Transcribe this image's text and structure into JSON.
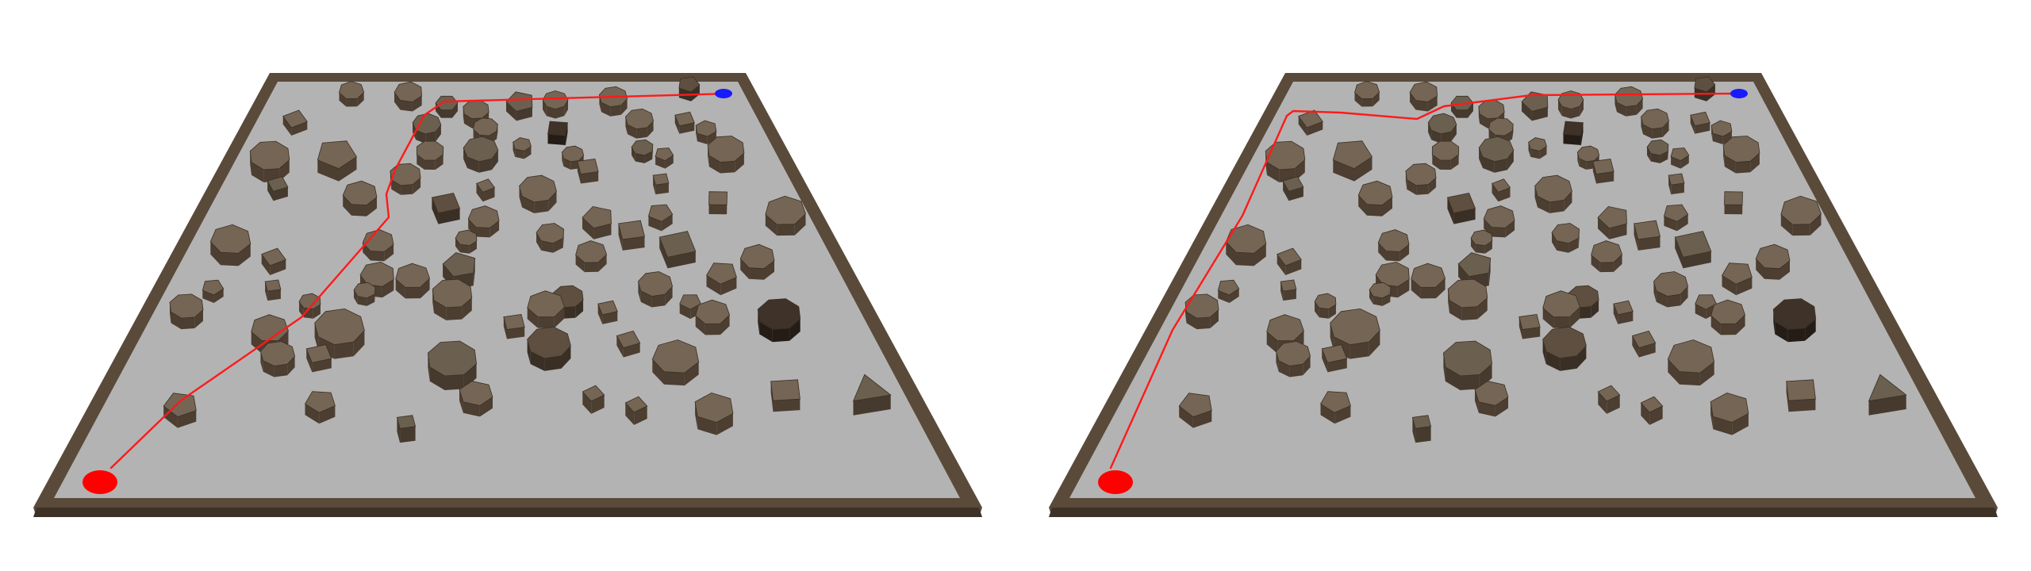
{
  "scenes": [
    {
      "id": "left",
      "path_color": "#ff1a1a",
      "start_marker_color": "#ff0000",
      "goal_marker_color": "#1a1aff"
    },
    {
      "id": "right",
      "path_color": "#ff1a1a",
      "start_marker_color": "#ff0000",
      "goal_marker_color": "#1a1aff"
    }
  ],
  "colors": {
    "background": "#ffffff",
    "floor": "#b3b3b3",
    "border_wall": "#5a4a3a",
    "obstacle_top": "#6e5f4e",
    "obstacle_side": "#4a3d30"
  }
}
